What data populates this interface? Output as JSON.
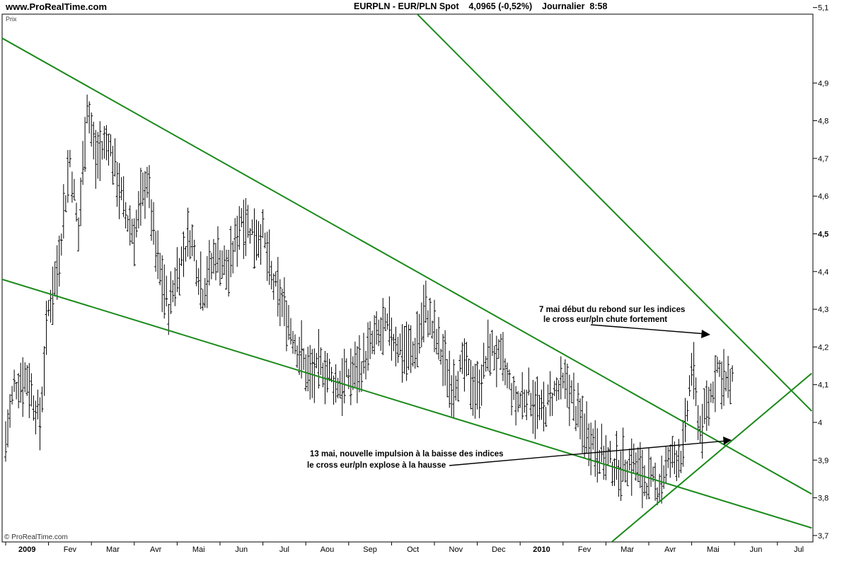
{
  "header": {
    "site": "www.ProRealTime.com",
    "title": "EURPLN - EUR/PLN Spot    4,0965 (-0,52%)    Journalier  8:58"
  },
  "footer": {
    "copyright": "© ProRealTime.com"
  },
  "panel_label": "Prix",
  "annotations": {
    "note1_line1": "7 mai début du rebond sur les indices",
    "note1_line2": "le cross eur/pln chute fortement",
    "note2_line1": "13 mai, nouvelle impulsion à la baisse des indices",
    "note2_line2": "le cross eur/pln explose à la hausse"
  },
  "colors": {
    "trendline": "#1a8a1a",
    "bars": "#000000",
    "axis": "#000000"
  },
  "chart_data": {
    "type": "ohlc",
    "title": "EURPLN - EUR/PLN Spot",
    "ylabel": "Prix",
    "ylim": [
      3.7,
      5.25
    ],
    "y_ticks": [
      "3,7",
      "3,8",
      "3,9",
      "4",
      "4,1",
      "4,2",
      "4,3",
      "4,4",
      "4,5",
      "4,6",
      "4,7",
      "4,8",
      "4,9",
      "5,1"
    ],
    "x_ticks": [
      "2009",
      "Fev",
      "Mar",
      "Avr",
      "Mai",
      "Jun",
      "Jul",
      "Aou",
      "Sep",
      "Oct",
      "Nov",
      "Dec",
      "2010",
      "Fev",
      "Mar",
      "Avr",
      "Mai",
      "Jun",
      "Jul"
    ],
    "x_range_months": [
      0,
      18.5
    ],
    "approx_close_series": [
      {
        "m": 0.0,
        "v": 3.95
      },
      {
        "m": 0.2,
        "v": 4.1
      },
      {
        "m": 0.5,
        "v": 4.12
      },
      {
        "m": 0.8,
        "v": 4.0
      },
      {
        "m": 1.0,
        "v": 4.3
      },
      {
        "m": 1.2,
        "v": 4.4
      },
      {
        "m": 1.5,
        "v": 4.7
      },
      {
        "m": 1.7,
        "v": 4.5
      },
      {
        "m": 1.9,
        "v": 4.85
      },
      {
        "m": 2.1,
        "v": 4.7
      },
      {
        "m": 2.4,
        "v": 4.75
      },
      {
        "m": 2.6,
        "v": 4.65
      },
      {
        "m": 2.8,
        "v": 4.55
      },
      {
        "m": 3.0,
        "v": 4.5
      },
      {
        "m": 3.3,
        "v": 4.65
      },
      {
        "m": 3.5,
        "v": 4.45
      },
      {
        "m": 3.8,
        "v": 4.3
      },
      {
        "m": 4.0,
        "v": 4.4
      },
      {
        "m": 4.3,
        "v": 4.5
      },
      {
        "m": 4.6,
        "v": 4.35
      },
      {
        "m": 4.9,
        "v": 4.45
      },
      {
        "m": 5.2,
        "v": 4.4
      },
      {
        "m": 5.5,
        "v": 4.55
      },
      {
        "m": 5.8,
        "v": 4.5
      },
      {
        "m": 6.0,
        "v": 4.5
      },
      {
        "m": 6.2,
        "v": 4.38
      },
      {
        "m": 6.5,
        "v": 4.3
      },
      {
        "m": 6.8,
        "v": 4.2
      },
      {
        "m": 7.1,
        "v": 4.12
      },
      {
        "m": 7.4,
        "v": 4.15
      },
      {
        "m": 7.7,
        "v": 4.1
      },
      {
        "m": 8.0,
        "v": 4.12
      },
      {
        "m": 8.3,
        "v": 4.15
      },
      {
        "m": 8.6,
        "v": 4.22
      },
      {
        "m": 8.9,
        "v": 4.25
      },
      {
        "m": 9.2,
        "v": 4.2
      },
      {
        "m": 9.5,
        "v": 4.18
      },
      {
        "m": 9.8,
        "v": 4.3
      },
      {
        "m": 10.1,
        "v": 4.2
      },
      {
        "m": 10.4,
        "v": 4.1
      },
      {
        "m": 10.7,
        "v": 4.15
      },
      {
        "m": 11.0,
        "v": 4.08
      },
      {
        "m": 11.3,
        "v": 4.2
      },
      {
        "m": 11.6,
        "v": 4.15
      },
      {
        "m": 11.9,
        "v": 4.05
      },
      {
        "m": 12.2,
        "v": 4.08
      },
      {
        "m": 12.5,
        "v": 4.02
      },
      {
        "m": 12.8,
        "v": 4.08
      },
      {
        "m": 13.1,
        "v": 4.1
      },
      {
        "m": 13.4,
        "v": 4.0
      },
      {
        "m": 13.7,
        "v": 3.95
      },
      {
        "m": 14.0,
        "v": 3.9
      },
      {
        "m": 14.3,
        "v": 3.88
      },
      {
        "m": 14.6,
        "v": 3.9
      },
      {
        "m": 14.9,
        "v": 3.85
      },
      {
        "m": 15.2,
        "v": 3.83
      },
      {
        "m": 15.5,
        "v": 3.9
      },
      {
        "m": 15.8,
        "v": 3.92
      },
      {
        "m": 16.0,
        "v": 4.15
      },
      {
        "m": 16.2,
        "v": 3.98
      },
      {
        "m": 16.4,
        "v": 4.05
      },
      {
        "m": 16.6,
        "v": 4.15
      },
      {
        "m": 16.8,
        "v": 4.1
      },
      {
        "m": 17.0,
        "v": 4.1
      }
    ],
    "trendlines": [
      {
        "from": {
          "m": -0.1,
          "v": 5.02
        },
        "to": {
          "m": 18.8,
          "v": 3.81
        }
      },
      {
        "from": {
          "m": -0.1,
          "v": 4.38
        },
        "to": {
          "m": 18.8,
          "v": 3.72
        }
      },
      {
        "from": {
          "m": 7.7,
          "v": 5.3
        },
        "to": {
          "m": 18.8,
          "v": 4.03
        }
      },
      {
        "from": {
          "m": 14.0,
          "v": 3.67
        },
        "to": {
          "m": 18.8,
          "v": 4.13
        }
      }
    ]
  }
}
